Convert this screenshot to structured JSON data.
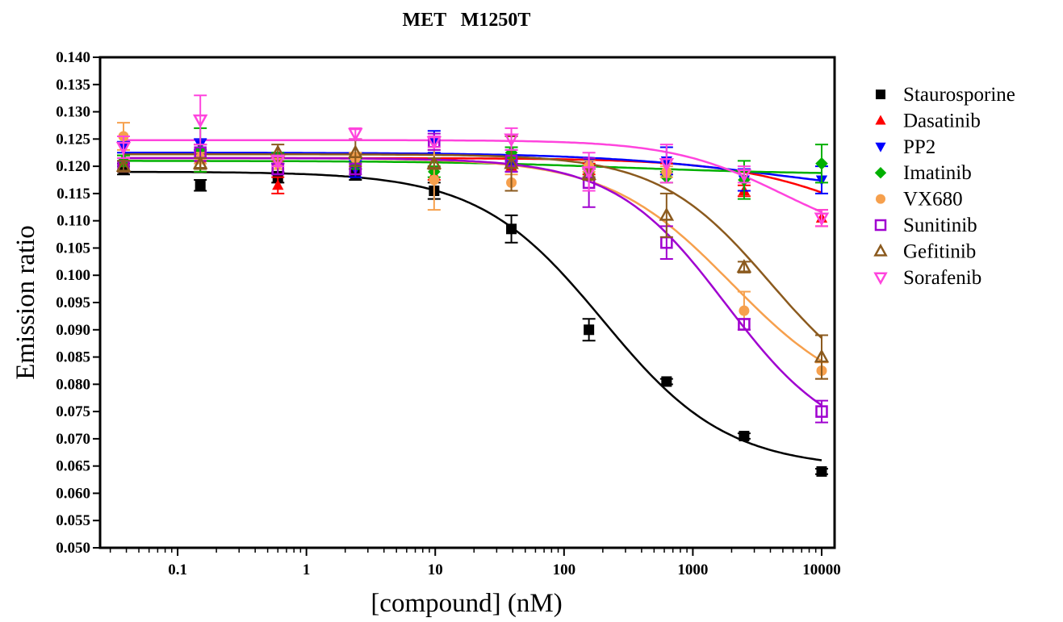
{
  "chart_data": {
    "type": "scatter",
    "title": "MET   M1250T",
    "xlabel": "[compound] (nM)",
    "ylabel": "Emission ratio",
    "xscale": "log",
    "xlim": [
      0.025,
      12600
    ],
    "ylim": [
      0.05,
      0.14
    ],
    "x_ticks": [
      0.1,
      1,
      10,
      100,
      1000,
      10000
    ],
    "x_tick_labels": [
      "0.1",
      "1",
      "10",
      "100",
      "1000",
      "10000"
    ],
    "y_ticks": [
      0.05,
      0.055,
      0.06,
      0.065,
      0.07,
      0.075,
      0.08,
      0.085,
      0.09,
      0.095,
      0.1,
      0.105,
      0.11,
      0.115,
      0.12,
      0.125,
      0.13,
      0.135,
      0.14
    ],
    "y_tick_labels": [
      "0.050",
      "0.055",
      "0.060",
      "0.065",
      "0.070",
      "0.075",
      "0.080",
      "0.085",
      "0.090",
      "0.095",
      "0.100",
      "0.105",
      "0.110",
      "0.115",
      "0.120",
      "0.125",
      "0.130",
      "0.135",
      "0.140"
    ],
    "grid": false,
    "legend_position": "right",
    "x": [
      0.038,
      0.15,
      0.6,
      2.4,
      9.8,
      39,
      156,
      625,
      2500,
      10000
    ],
    "series": [
      {
        "name": "Staurosporine",
        "color": "#000000",
        "marker": "square-filled",
        "values": [
          0.1195,
          0.1165,
          0.118,
          0.1185,
          0.1155,
          0.1085,
          0.09,
          0.0805,
          0.0705,
          0.064
        ],
        "errors": [
          0.001,
          0.001,
          0.001,
          0.001,
          0.0015,
          0.0025,
          0.002,
          0.0005,
          0.0005,
          0.0005
        ],
        "fit": {
          "top": 0.119,
          "bottom": 0.0645,
          "ec50": 200,
          "hill": 0.9
        }
      },
      {
        "name": "Dasatinib",
        "color": "#ff0000",
        "marker": "triangle-up-filled",
        "values": [
          0.121,
          0.1215,
          0.1165,
          0.1205,
          0.1185,
          0.12,
          0.1195,
          0.1195,
          0.1155,
          0.1105
        ],
        "errors": [
          0.001,
          0.0025,
          0.0015,
          0.001,
          0.001,
          0.001,
          0.001,
          0.001,
          0.001,
          0.0015
        ],
        "fit": {
          "top": 0.1215,
          "bottom": 0.1,
          "ec50": 30000,
          "hill": 0.8
        }
      },
      {
        "name": "PP2",
        "color": "#0000ff",
        "marker": "triangle-down-filled",
        "values": [
          0.1235,
          0.124,
          0.1215,
          0.1195,
          0.1245,
          0.12,
          0.1205,
          0.121,
          0.1175,
          0.1175
        ],
        "errors": [
          0.001,
          0.001,
          0.001,
          0.0015,
          0.002,
          0.001,
          0.001,
          0.0025,
          0.002,
          0.0025
        ],
        "fit": {
          "top": 0.1225,
          "bottom": 0.114,
          "ec50": 5000,
          "hill": 0.6
        }
      },
      {
        "name": "Imatinib",
        "color": "#00b000",
        "marker": "diamond-filled",
        "values": [
          0.121,
          0.123,
          0.1215,
          0.1205,
          0.119,
          0.1225,
          0.119,
          0.118,
          0.1175,
          0.1205
        ],
        "errors": [
          0.001,
          0.004,
          0.001,
          0.001,
          0.001,
          0.001,
          0.001,
          0.001,
          0.0035,
          0.0035
        ],
        "fit": {
          "top": 0.121,
          "bottom": 0.1185,
          "ec50": 300,
          "hill": 0.6
        }
      },
      {
        "name": "VX680",
        "color": "#f6a04d",
        "marker": "circle-filled",
        "values": [
          0.1255,
          0.1215,
          0.1205,
          0.1215,
          0.1175,
          0.117,
          0.12,
          0.119,
          0.0935,
          0.0825
        ],
        "errors": [
          0.0025,
          0.001,
          0.001,
          0.001,
          0.0055,
          0.0015,
          0.001,
          0.001,
          0.0035,
          0.0015
        ],
        "fit": {
          "top": 0.1215,
          "bottom": 0.0755,
          "ec50": 2000,
          "hill": 0.9
        }
      },
      {
        "name": "Sunitinib",
        "color": "#a000d0",
        "marker": "square-open",
        "values": [
          0.12,
          0.1225,
          0.1195,
          0.1195,
          0.1245,
          0.121,
          0.117,
          0.106,
          0.091,
          0.075
        ],
        "errors": [
          0.001,
          0.0015,
          0.001,
          0.001,
          0.0015,
          0.002,
          0.0045,
          0.003,
          0.001,
          0.002
        ],
        "fit": {
          "top": 0.1215,
          "bottom": 0.068,
          "ec50": 1800,
          "hill": 1.0
        }
      },
      {
        "name": "Gefitinib",
        "color": "#8b5a1e",
        "marker": "triangle-up-open",
        "values": [
          0.12,
          0.1205,
          0.1225,
          0.1225,
          0.1205,
          0.1205,
          0.1185,
          0.111,
          0.1015,
          0.085
        ],
        "errors": [
          0.001,
          0.001,
          0.0015,
          0.0025,
          0.001,
          0.005,
          0.001,
          0.004,
          0.001,
          0.004
        ],
        "fit": {
          "top": 0.1222,
          "bottom": 0.075,
          "ec50": 4000,
          "hill": 1.0
        }
      },
      {
        "name": "Sorafenib",
        "color": "#ff44dd",
        "marker": "triangle-down-open",
        "values": [
          0.1235,
          0.1285,
          0.121,
          0.126,
          0.1245,
          0.125,
          0.119,
          0.1205,
          0.1185,
          0.1105
        ],
        "errors": [
          0.002,
          0.0045,
          0.001,
          0.001,
          0.001,
          0.002,
          0.0035,
          0.0035,
          0.0015,
          0.0015
        ],
        "fit": {
          "top": 0.1248,
          "bottom": 0.105,
          "ec50": 5000,
          "hill": 1.0
        }
      }
    ]
  }
}
